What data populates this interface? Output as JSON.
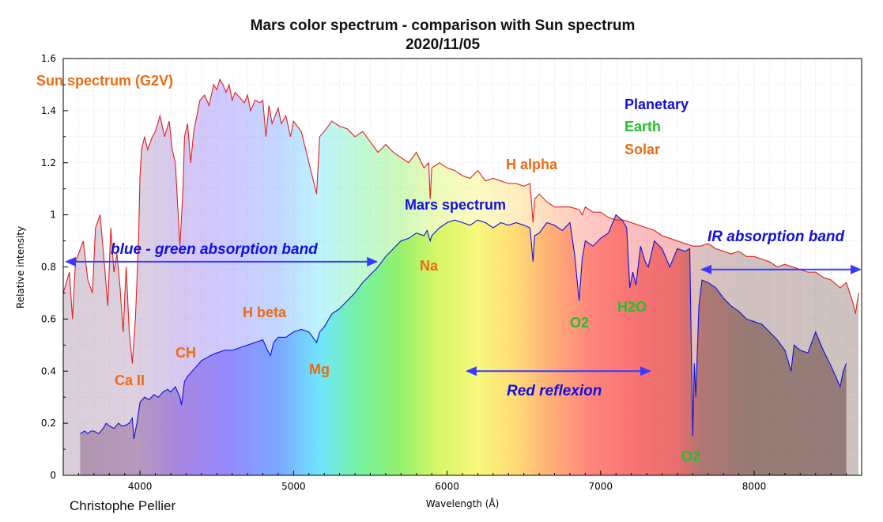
{
  "chart_data": {
    "type": "line",
    "title": "Mars color spectrum - comparison with Sun spectrum",
    "subtitle": "2020/11/05",
    "xlabel": "Wavelength (Å)",
    "ylabel": "Relative intensity",
    "xlim": [
      3500,
      8700
    ],
    "ylim": [
      0,
      1.6
    ],
    "xticks": [
      4000,
      5000,
      6000,
      7000,
      8000
    ],
    "yticks": [
      0,
      0.2,
      0.4,
      0.6,
      0.8,
      1,
      1.2,
      1.4,
      1.6
    ],
    "ytick_labels": [
      "0",
      "0.2",
      "0.4",
      "0.6",
      "0.8",
      "1",
      "1.2",
      "1.4",
      "1.6"
    ],
    "grid": true,
    "series": [
      {
        "name": "Sun spectrum (G2V)",
        "color": "#e02020",
        "x": [
          3500,
          3540,
          3560,
          3580,
          3600,
          3630,
          3660,
          3690,
          3710,
          3740,
          3770,
          3790,
          3810,
          3830,
          3850,
          3870,
          3890,
          3910,
          3930,
          3950,
          3970,
          3990,
          4000,
          4010,
          4030,
          4050,
          4080,
          4100,
          4130,
          4160,
          4190,
          4210,
          4230,
          4260,
          4280,
          4290,
          4310,
          4330,
          4350,
          4370,
          4390,
          4420,
          4450,
          4480,
          4500,
          4520,
          4540,
          4560,
          4580,
          4600,
          4620,
          4650,
          4680,
          4700,
          4720,
          4750,
          4780,
          4800,
          4820,
          4840,
          4860,
          4880,
          4900,
          4920,
          4950,
          4980,
          5000,
          5050,
          5100,
          5150,
          5170,
          5200,
          5250,
          5300,
          5350,
          5400,
          5450,
          5500,
          5550,
          5600,
          5650,
          5700,
          5750,
          5800,
          5850,
          5880,
          5890,
          5900,
          5950,
          6000,
          6050,
          6100,
          6150,
          6200,
          6250,
          6300,
          6350,
          6400,
          6450,
          6500,
          6540,
          6560,
          6570,
          6600,
          6650,
          6700,
          6750,
          6800,
          6860,
          6880,
          6900,
          6950,
          7000,
          7050,
          7100,
          7150,
          7200,
          7250,
          7300,
          7350,
          7400,
          7450,
          7500,
          7550,
          7600,
          7650,
          7700,
          7750,
          7800,
          7850,
          7900,
          7950,
          8000,
          8050,
          8100,
          8150,
          8200,
          8250,
          8300,
          8350,
          8400,
          8450,
          8500,
          8540,
          8560,
          8600,
          8640,
          8660,
          8680
        ],
        "values": [
          0.7,
          0.78,
          0.6,
          0.82,
          0.85,
          0.9,
          0.75,
          0.7,
          0.95,
          1.0,
          0.8,
          0.65,
          0.95,
          0.78,
          0.85,
          0.72,
          0.55,
          0.8,
          0.55,
          0.43,
          0.6,
          0.9,
          1.15,
          1.25,
          1.3,
          1.25,
          1.3,
          1.32,
          1.38,
          1.3,
          1.36,
          1.25,
          1.2,
          0.88,
          1.1,
          1.3,
          1.35,
          1.2,
          1.32,
          1.38,
          1.44,
          1.46,
          1.42,
          1.5,
          1.48,
          1.52,
          1.5,
          1.47,
          1.5,
          1.44,
          1.47,
          1.45,
          1.43,
          1.46,
          1.4,
          1.44,
          1.43,
          1.44,
          1.3,
          1.42,
          1.35,
          1.38,
          1.41,
          1.35,
          1.38,
          1.3,
          1.36,
          1.32,
          1.2,
          1.08,
          1.3,
          1.32,
          1.36,
          1.34,
          1.33,
          1.3,
          1.32,
          1.28,
          1.24,
          1.27,
          1.24,
          1.22,
          1.2,
          1.24,
          1.18,
          1.2,
          1.06,
          1.18,
          1.2,
          1.18,
          1.17,
          1.15,
          1.14,
          1.17,
          1.13,
          1.14,
          1.13,
          1.12,
          1.12,
          1.11,
          1.12,
          0.97,
          1.06,
          1.08,
          1.05,
          1.03,
          1.03,
          1.03,
          1.02,
          1.0,
          1.03,
          1.01,
          1.01,
          0.99,
          0.98,
          0.98,
          0.97,
          0.96,
          0.95,
          0.94,
          0.92,
          0.91,
          0.9,
          0.89,
          0.88,
          0.88,
          0.89,
          0.87,
          0.86,
          0.85,
          0.86,
          0.84,
          0.84,
          0.83,
          0.82,
          0.8,
          0.81,
          0.8,
          0.79,
          0.78,
          0.78,
          0.76,
          0.75,
          0.73,
          0.72,
          0.74,
          0.67,
          0.62,
          0.7
        ]
      },
      {
        "name": "Mars spectrum",
        "color": "#1010dd",
        "x": [
          3610,
          3640,
          3660,
          3680,
          3700,
          3730,
          3760,
          3780,
          3800,
          3830,
          3860,
          3880,
          3900,
          3930,
          3950,
          3960,
          3980,
          4000,
          4030,
          4060,
          4090,
          4120,
          4150,
          4180,
          4200,
          4230,
          4260,
          4270,
          4290,
          4310,
          4340,
          4370,
          4400,
          4430,
          4460,
          4500,
          4550,
          4600,
          4650,
          4700,
          4750,
          4800,
          4830,
          4850,
          4870,
          4900,
          4950,
          5000,
          5050,
          5100,
          5150,
          5170,
          5200,
          5250,
          5300,
          5350,
          5400,
          5450,
          5500,
          5550,
          5600,
          5650,
          5700,
          5750,
          5800,
          5850,
          5870,
          5890,
          5900,
          5950,
          6000,
          6050,
          6100,
          6150,
          6200,
          6250,
          6300,
          6350,
          6400,
          6450,
          6500,
          6540,
          6560,
          6570,
          6600,
          6650,
          6700,
          6750,
          6800,
          6830,
          6860,
          6880,
          6900,
          6950,
          7000,
          7050,
          7100,
          7140,
          7170,
          7190,
          7210,
          7230,
          7260,
          7290,
          7310,
          7350,
          7400,
          7450,
          7500,
          7550,
          7580,
          7600,
          7610,
          7620,
          7640,
          7660,
          7700,
          7750,
          7800,
          7850,
          7900,
          7950,
          8000,
          8050,
          8100,
          8150,
          8200,
          8220,
          8240,
          8260,
          8300,
          8350,
          8400,
          8450,
          8500,
          8530,
          8560,
          8580,
          8600
        ],
        "values": [
          0.16,
          0.17,
          0.16,
          0.17,
          0.17,
          0.16,
          0.18,
          0.2,
          0.19,
          0.18,
          0.2,
          0.19,
          0.19,
          0.2,
          0.22,
          0.14,
          0.2,
          0.28,
          0.3,
          0.29,
          0.31,
          0.3,
          0.32,
          0.33,
          0.32,
          0.34,
          0.3,
          0.27,
          0.36,
          0.38,
          0.4,
          0.42,
          0.44,
          0.45,
          0.46,
          0.47,
          0.48,
          0.48,
          0.49,
          0.5,
          0.51,
          0.52,
          0.48,
          0.46,
          0.51,
          0.53,
          0.53,
          0.55,
          0.56,
          0.55,
          0.51,
          0.55,
          0.57,
          0.62,
          0.64,
          0.67,
          0.7,
          0.74,
          0.77,
          0.8,
          0.84,
          0.87,
          0.9,
          0.91,
          0.93,
          0.92,
          0.94,
          0.9,
          0.92,
          0.95,
          0.97,
          0.98,
          0.97,
          0.96,
          0.98,
          0.97,
          0.95,
          0.97,
          0.96,
          0.97,
          0.96,
          0.95,
          0.82,
          0.92,
          0.93,
          0.97,
          0.96,
          0.94,
          0.97,
          0.85,
          0.67,
          0.83,
          0.9,
          0.88,
          0.91,
          0.93,
          1.0,
          0.98,
          0.95,
          0.72,
          0.78,
          0.73,
          0.88,
          0.82,
          0.8,
          0.9,
          0.87,
          0.8,
          0.87,
          0.86,
          0.87,
          0.15,
          0.43,
          0.3,
          0.65,
          0.75,
          0.74,
          0.72,
          0.68,
          0.65,
          0.63,
          0.6,
          0.59,
          0.58,
          0.55,
          0.52,
          0.48,
          0.44,
          0.4,
          0.5,
          0.48,
          0.47,
          0.55,
          0.48,
          0.42,
          0.38,
          0.34,
          0.4,
          0.43
        ]
      }
    ],
    "annotations": [
      {
        "text": "Sun spectrum (G2V)",
        "color": "#ee6a10"
      },
      {
        "text": "Planetary",
        "color": "#1010e0"
      },
      {
        "text": "Earth",
        "color": "#22c02a"
      },
      {
        "text": "Solar",
        "color": "#ee6a10"
      },
      {
        "text": "H alpha",
        "color": "#ee6a10"
      },
      {
        "text": "Mars spectrum",
        "color": "#1010e0"
      },
      {
        "text": "blue - green absorption band",
        "color": "#1010e0"
      },
      {
        "text": "IR absorption band",
        "color": "#1010e0"
      },
      {
        "text": "Na",
        "color": "#ee6a10"
      },
      {
        "text": "H beta",
        "color": "#ee6a10"
      },
      {
        "text": "CH",
        "color": "#ee6a10"
      },
      {
        "text": "Ca II",
        "color": "#ee6a10"
      },
      {
        "text": "Mg",
        "color": "#ee6a10"
      },
      {
        "text": "O2",
        "color": "#22c02a"
      },
      {
        "text": "H2O",
        "color": "#22c02a"
      },
      {
        "text": "Red reflexion",
        "color": "#1010e0"
      },
      {
        "text": "O2",
        "color": "#22c02a"
      }
    ],
    "ranges": [
      {
        "label": "blue - green absorption band",
        "from": 3500,
        "to": 5550
      },
      {
        "label": "Red reflexion",
        "from": 6120,
        "to": 7330
      },
      {
        "label": "IR absorption band",
        "from": 7650,
        "to": 8700
      }
    ]
  },
  "credit": "Christophe Pellier"
}
